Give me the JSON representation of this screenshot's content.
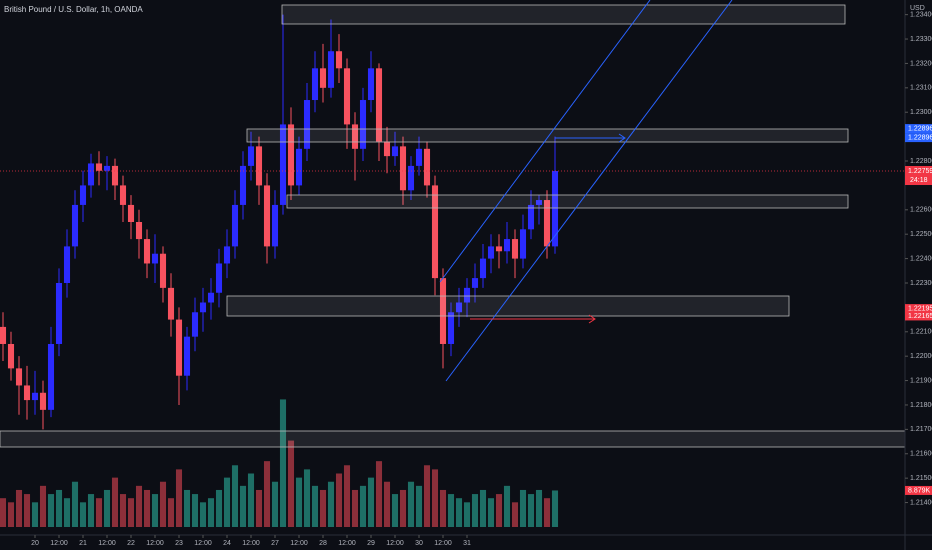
{
  "chart_data": {
    "type": "candlestick",
    "title": "British Pound / U.S. Dollar, 1h, OANDA",
    "currency": "USD",
    "countdown": "24:18",
    "up_color": "#2b2bff",
    "down_color": "#f7525f",
    "ylim": [
      1.21267,
      1.2346
    ],
    "xlim": [
      -0.375,
      112.75
    ],
    "yticks": [
      {
        "value": 1.234,
        "label": "1.23400"
      },
      {
        "value": 1.233,
        "label": "1.23300"
      },
      {
        "value": 1.232,
        "label": "1.23200"
      },
      {
        "value": 1.231,
        "label": "1.23100"
      },
      {
        "value": 1.23,
        "label": "1.23000"
      },
      {
        "value": 1.228,
        "label": "1.22800"
      },
      {
        "value": 1.226,
        "label": "1.22600"
      },
      {
        "value": 1.225,
        "label": "1.22500"
      },
      {
        "value": 1.224,
        "label": "1.22400"
      },
      {
        "value": 1.223,
        "label": "1.22300"
      },
      {
        "value": 1.221,
        "label": "1.22100"
      },
      {
        "value": 1.22,
        "label": "1.22000"
      },
      {
        "value": 1.219,
        "label": "1.21900"
      },
      {
        "value": 1.218,
        "label": "1.21800"
      },
      {
        "value": 1.217,
        "label": "1.21700"
      },
      {
        "value": 1.216,
        "label": "1.21600"
      },
      {
        "value": 1.215,
        "label": "1.21500"
      },
      {
        "value": 1.214,
        "label": "1.21400"
      }
    ],
    "xticks": [
      {
        "value": 4,
        "label": "20"
      },
      {
        "value": 7,
        "label": "12:00"
      },
      {
        "value": 10,
        "label": "21"
      },
      {
        "value": 13,
        "label": "12:00"
      },
      {
        "value": 16,
        "label": "22"
      },
      {
        "value": 19,
        "label": "12:00"
      },
      {
        "value": 22,
        "label": "23"
      },
      {
        "value": 25,
        "label": "12:00"
      },
      {
        "value": 28,
        "label": "24"
      },
      {
        "value": 31,
        "label": "12:00"
      },
      {
        "value": 34,
        "label": "27"
      },
      {
        "value": 37,
        "label": "12:00"
      },
      {
        "value": 40,
        "label": "28"
      },
      {
        "value": 43,
        "label": "12:00"
      },
      {
        "value": 46,
        "label": "29"
      },
      {
        "value": 49,
        "label": "12:00"
      },
      {
        "value": 52,
        "label": "30"
      },
      {
        "value": 55,
        "label": "12:00"
      },
      {
        "value": 58,
        "label": "31"
      }
    ],
    "axis_marks": [
      {
        "value": 1.22896,
        "color": "#2962ff"
      },
      {
        "value": 1.22896,
        "color": "#2962ff"
      },
      {
        "value": 1.22195,
        "color": "#f23645"
      },
      {
        "value": 1.22165,
        "color": "#f23645"
      }
    ],
    "candles": [
      [
        1.2212,
        1.2218,
        1.2198,
        1.2205
      ],
      [
        1.2205,
        1.221,
        1.219,
        1.2195
      ],
      [
        1.2195,
        1.22,
        1.2176,
        1.2188
      ],
      [
        1.2188,
        1.2196,
        1.2174,
        1.2182
      ],
      [
        1.2182,
        1.2194,
        1.2176,
        1.2185
      ],
      [
        1.2185,
        1.219,
        1.217,
        1.2178
      ],
      [
        1.2178,
        1.2212,
        1.2175,
        1.2205
      ],
      [
        1.2205,
        1.2236,
        1.22,
        1.223
      ],
      [
        1.223,
        1.2252,
        1.2224,
        1.2245
      ],
      [
        1.2245,
        1.2268,
        1.224,
        1.2262
      ],
      [
        1.2262,
        1.2276,
        1.2255,
        1.227
      ],
      [
        1.227,
        1.2283,
        1.2265,
        1.2279
      ],
      [
        1.2279,
        1.2284,
        1.227,
        1.2276
      ],
      [
        1.2276,
        1.2282,
        1.2268,
        1.2278
      ],
      [
        1.2278,
        1.2281,
        1.2264,
        1.227
      ],
      [
        1.227,
        1.2274,
        1.2255,
        1.2262
      ],
      [
        1.2262,
        1.2266,
        1.2248,
        1.2255
      ],
      [
        1.2255,
        1.226,
        1.224,
        1.2248
      ],
      [
        1.2248,
        1.2252,
        1.2232,
        1.2238
      ],
      [
        1.2238,
        1.225,
        1.223,
        1.2242
      ],
      [
        1.2242,
        1.2245,
        1.2222,
        1.2228
      ],
      [
        1.2228,
        1.2234,
        1.2208,
        1.2215
      ],
      [
        1.2215,
        1.222,
        1.218,
        1.2192
      ],
      [
        1.2192,
        1.2212,
        1.2186,
        1.2208
      ],
      [
        1.2208,
        1.2224,
        1.2202,
        1.2218
      ],
      [
        1.2218,
        1.2228,
        1.221,
        1.2222
      ],
      [
        1.2222,
        1.2232,
        1.2215,
        1.2226
      ],
      [
        1.2226,
        1.2244,
        1.222,
        1.2238
      ],
      [
        1.2238,
        1.2252,
        1.2232,
        1.2245
      ],
      [
        1.2245,
        1.2268,
        1.224,
        1.2262
      ],
      [
        1.2262,
        1.2284,
        1.2256,
        1.2278
      ],
      [
        1.2278,
        1.2292,
        1.2272,
        1.2286
      ],
      [
        1.2286,
        1.229,
        1.2262,
        1.227
      ],
      [
        1.227,
        1.2275,
        1.2238,
        1.2245
      ],
      [
        1.2245,
        1.2268,
        1.224,
        1.2262
      ],
      [
        1.2262,
        1.234,
        1.2258,
        1.2295
      ],
      [
        1.2295,
        1.2302,
        1.2264,
        1.227
      ],
      [
        1.227,
        1.229,
        1.2266,
        1.2285
      ],
      [
        1.2285,
        1.2312,
        1.228,
        1.2305
      ],
      [
        1.2305,
        1.2325,
        1.23,
        1.2318
      ],
      [
        1.2318,
        1.2328,
        1.2304,
        1.231
      ],
      [
        1.231,
        1.2338,
        1.2306,
        1.2325
      ],
      [
        1.2325,
        1.2332,
        1.2312,
        1.2318
      ],
      [
        1.2318,
        1.2322,
        1.2285,
        1.2295
      ],
      [
        1.2295,
        1.23,
        1.2272,
        1.2285
      ],
      [
        1.2285,
        1.231,
        1.228,
        1.2305
      ],
      [
        1.2305,
        1.2325,
        1.23,
        1.2318
      ],
      [
        1.2318,
        1.232,
        1.228,
        1.2288
      ],
      [
        1.2288,
        1.2294,
        1.2275,
        1.2282
      ],
      [
        1.2282,
        1.2292,
        1.2278,
        1.2286
      ],
      [
        1.2286,
        1.229,
        1.2262,
        1.2268
      ],
      [
        1.2268,
        1.2282,
        1.2264,
        1.2278
      ],
      [
        1.2278,
        1.229,
        1.2274,
        1.2285
      ],
      [
        1.2285,
        1.2288,
        1.2265,
        1.227
      ],
      [
        1.227,
        1.2274,
        1.2225,
        1.2232
      ],
      [
        1.2232,
        1.2236,
        1.2195,
        1.2205
      ],
      [
        1.2205,
        1.2222,
        1.22,
        1.2218
      ],
      [
        1.2218,
        1.2228,
        1.2212,
        1.2222
      ],
      [
        1.2222,
        1.2232,
        1.2216,
        1.2228
      ],
      [
        1.2228,
        1.2238,
        1.2222,
        1.2232
      ],
      [
        1.2232,
        1.2246,
        1.2228,
        1.224
      ],
      [
        1.224,
        1.225,
        1.2234,
        1.2245
      ],
      [
        1.2245,
        1.225,
        1.2236,
        1.2243
      ],
      [
        1.2243,
        1.2255,
        1.2238,
        1.2248
      ],
      [
        1.2248,
        1.2252,
        1.2232,
        1.224
      ],
      [
        1.224,
        1.2258,
        1.2236,
        1.2252
      ],
      [
        1.2252,
        1.2268,
        1.2248,
        1.2262
      ],
      [
        1.2262,
        1.2266,
        1.2254,
        1.2264
      ],
      [
        1.2264,
        1.2268,
        1.224,
        1.2245
      ],
      [
        1.2245,
        1.229,
        1.2242,
        1.22759
      ]
    ],
    "volume": {
      "up_color": "#1e6f66",
      "down_color": "#8c2f3a",
      "ylim": [
        0,
        130
      ],
      "values": [
        7,
        6,
        9,
        8,
        6,
        10,
        8,
        9,
        7,
        11,
        6,
        8,
        7,
        9,
        12,
        8,
        7,
        10,
        9,
        8,
        11,
        7,
        14,
        9,
        8,
        6,
        7,
        9,
        12,
        15,
        10,
        13,
        9,
        16,
        11,
        31,
        21,
        12,
        14,
        10,
        9,
        11,
        13,
        15,
        9,
        10,
        12,
        16,
        11,
        8,
        9,
        11,
        10,
        15,
        14,
        9,
        8,
        7,
        6,
        8,
        9,
        7,
        8,
        10,
        6,
        9,
        8,
        9,
        7,
        8.879
      ],
      "value_labels": [
        null,
        null,
        null,
        null,
        null,
        null,
        null,
        null,
        null,
        null,
        null,
        null,
        null,
        null,
        null,
        null,
        null,
        null,
        null,
        null,
        null,
        null,
        null,
        null,
        null,
        null,
        null,
        null,
        null,
        null,
        null,
        null,
        null,
        null,
        null,
        null,
        null,
        null,
        null,
        null,
        null,
        null,
        null,
        null,
        null,
        null,
        null,
        null,
        null,
        null,
        null,
        null,
        null,
        null,
        null,
        null,
        null,
        null,
        null,
        null,
        null,
        null,
        null,
        null,
        null,
        null,
        null,
        null,
        null,
        "8.879K"
      ]
    }
  }
}
